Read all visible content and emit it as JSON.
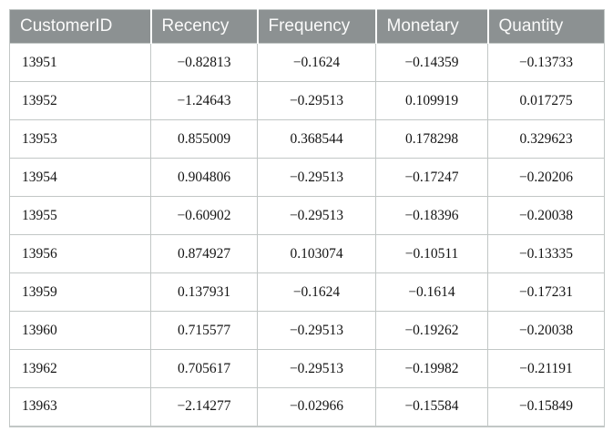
{
  "table": {
    "columns": [
      "CustomerID",
      "Recency",
      "Frequency",
      "Monetary",
      "Quantity"
    ],
    "rows": [
      [
        "13951",
        "−0.82813",
        "−0.1624",
        "−0.14359",
        "−0.13733"
      ],
      [
        "13952",
        "−1.24643",
        "−0.29513",
        "0.109919",
        "0.017275"
      ],
      [
        "13953",
        "0.855009",
        "0.368544",
        "0.178298",
        "0.329623"
      ],
      [
        "13954",
        "0.904806",
        "−0.29513",
        "−0.17247",
        "−0.20206"
      ],
      [
        "13955",
        "−0.60902",
        "−0.29513",
        "−0.18396",
        "−0.20038"
      ],
      [
        "13956",
        "0.874927",
        "0.103074",
        "−0.10511",
        "−0.13335"
      ],
      [
        "13959",
        "0.137931",
        "−0.1624",
        "−0.1614",
        "−0.17231"
      ],
      [
        "13960",
        "0.715577",
        "−0.29513",
        "−0.19262",
        "−0.20038"
      ],
      [
        "13962",
        "0.705617",
        "−0.29513",
        "−0.19982",
        "−0.21191"
      ],
      [
        "13963",
        "−2.14277",
        "−0.02966",
        "−0.15584",
        "−0.15849"
      ]
    ]
  },
  "colors": {
    "header_bg": "#8c9192",
    "header_text": "#fafafa",
    "border": "#c2c7c6",
    "cell_text": "#141414"
  }
}
